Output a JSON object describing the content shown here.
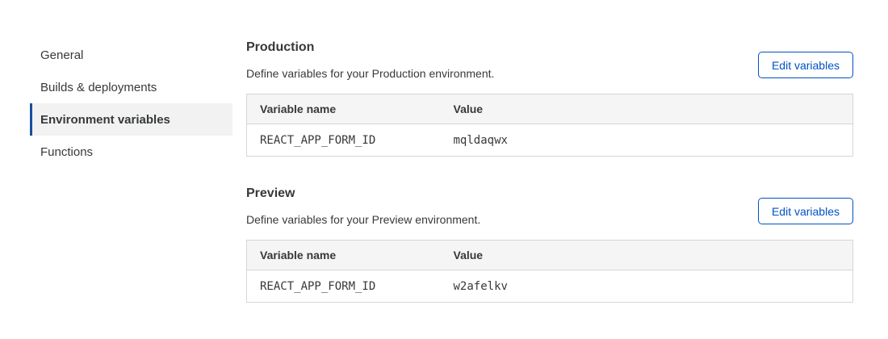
{
  "sidebar": {
    "items": [
      {
        "label": "General"
      },
      {
        "label": "Builds & deployments"
      },
      {
        "label": "Environment variables"
      },
      {
        "label": "Functions"
      }
    ],
    "active_index": 2
  },
  "sections": [
    {
      "title": "Production",
      "description": "Define variables for your Production environment.",
      "button_label": "Edit variables",
      "table": {
        "columns": [
          "Variable name",
          "Value"
        ],
        "rows": [
          {
            "name": "REACT_APP_FORM_ID",
            "value": "mqldaqwx"
          }
        ]
      }
    },
    {
      "title": "Preview",
      "description": "Define variables for your Preview environment.",
      "button_label": "Edit variables",
      "table": {
        "columns": [
          "Variable name",
          "Value"
        ],
        "rows": [
          {
            "name": "REACT_APP_FORM_ID",
            "value": "w2afelkv"
          }
        ]
      }
    }
  ],
  "colors": {
    "accent_blue": "#0051c3",
    "active_indicator_blue": "#16509e",
    "active_item_bg": "#f2f2f2",
    "table_header_bg": "#f5f5f5",
    "table_border": "#d6d6d6",
    "text": "#36393a"
  }
}
